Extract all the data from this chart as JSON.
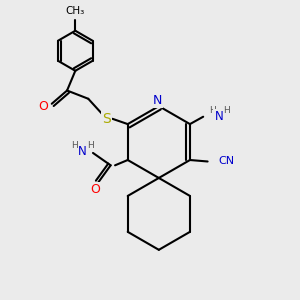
{
  "bg_color": "#ebebeb",
  "bond_color": "#000000",
  "bond_width": 1.5,
  "font_size": 7.5,
  "colors": {
    "N": "#0000cc",
    "O": "#ff0000",
    "S": "#aaaa00",
    "C": "#000000",
    "H": "#555555"
  },
  "xlim": [
    0,
    10
  ],
  "ylim": [
    0,
    10
  ]
}
